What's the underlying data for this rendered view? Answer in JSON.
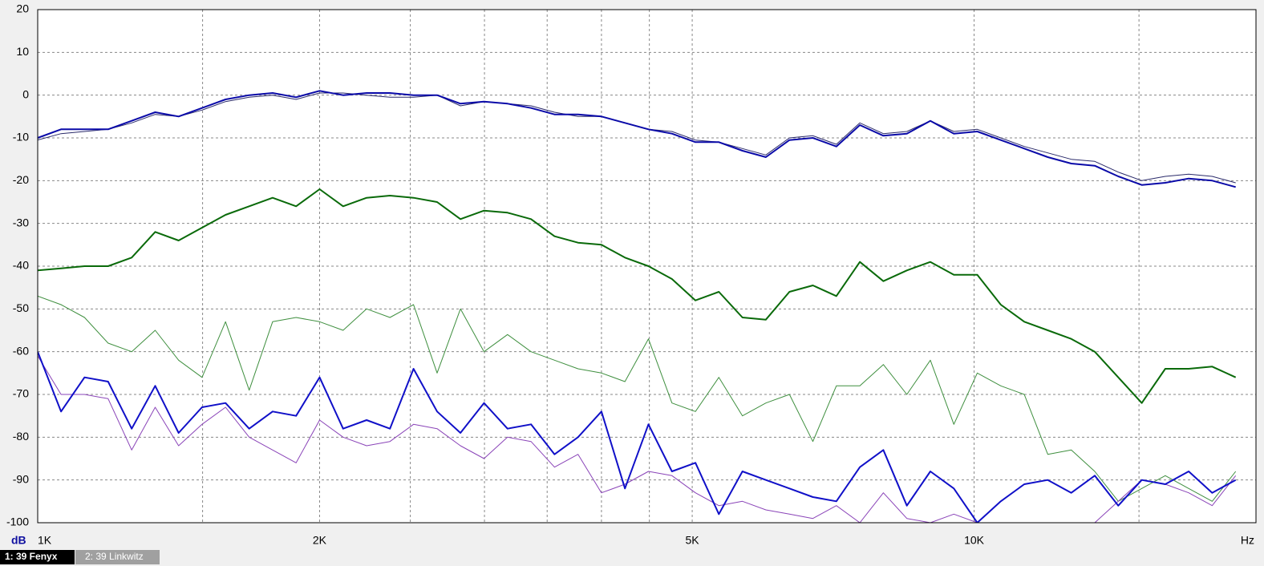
{
  "chart_data": {
    "type": "line",
    "x_scale": "log",
    "grid": true,
    "x_label": "Hz",
    "y_label": "dB",
    "tabs": [
      "1: 39 Fenyx",
      "2: 39 Linkwitz"
    ],
    "xlim": [
      1000,
      20000
    ],
    "ylim": [
      -100,
      20
    ],
    "yticks": [
      -100,
      -90,
      -80,
      -70,
      -60,
      -50,
      -40,
      -30,
      -20,
      -10,
      0,
      10,
      20
    ],
    "xticks": [
      {
        "value": 1000,
        "label": "1K"
      },
      {
        "value": 2000,
        "label": "2K"
      },
      {
        "value": 5000,
        "label": "5K"
      },
      {
        "value": 10000,
        "label": "10K"
      }
    ],
    "xgrid": [
      1500,
      2500,
      3000,
      3500,
      4000,
      4500,
      15000
    ],
    "x": [
      1000,
      1059,
      1122,
      1189,
      1260,
      1335,
      1414,
      1498,
      1587,
      1682,
      1782,
      1888,
      2000,
      2119,
      2245,
      2378,
      2520,
      2670,
      2828,
      2997,
      3175,
      3364,
      3564,
      3776,
      4000,
      4238,
      4490,
      4757,
      5040,
      5339,
      5657,
      5993,
      6350,
      6727,
      7127,
      7551,
      8000,
      8476,
      8980,
      9514,
      10079,
      10679,
      11314,
      11986,
      12699,
      13454,
      14254,
      15102,
      16000,
      16951,
      17959,
      19027
    ],
    "series": [
      {
        "color": "#2a2a6a",
        "width": 1,
        "values": [
          -10.5,
          -9,
          -8.5,
          -8,
          -6.5,
          -4.5,
          -5,
          -3.5,
          -1.5,
          -0.5,
          0,
          -1,
          0.5,
          0.5,
          0,
          -0.5,
          -0.5,
          0,
          -2.5,
          -1.5,
          -2,
          -2.5,
          -4,
          -5,
          -5,
          -6.5,
          -8,
          -8.5,
          -10.5,
          -11,
          -12.5,
          -14,
          -10,
          -9.5,
          -11.5,
          -6.5,
          -9,
          -8.5,
          -6,
          -8.5,
          -8,
          -10,
          -12,
          -13.5,
          -15,
          -15.5,
          -18,
          -20,
          -19,
          -18.5,
          -19,
          -20.5
        ]
      },
      {
        "color": "#0a0aa8",
        "width": 2,
        "values": [
          -10,
          -8,
          -8,
          -8,
          -6,
          -4,
          -5,
          -3,
          -1,
          0,
          0.5,
          -0.5,
          1,
          0,
          0.5,
          0.5,
          0,
          0,
          -2,
          -1.5,
          -2,
          -3,
          -4.5,
          -4.5,
          -5,
          -6.5,
          -8,
          -9,
          -11,
          -11,
          -13,
          -14.5,
          -10.5,
          -10,
          -12,
          -7,
          -9.5,
          -9,
          -6,
          -9,
          -8.5,
          -10.5,
          -12.5,
          -14.5,
          -16,
          -16.5,
          -19,
          -21,
          -20.5,
          -19.5,
          -20,
          -21.5
        ]
      },
      {
        "color": "#0a6a0a",
        "width": 2,
        "values": [
          -41,
          -40.5,
          -40,
          -40,
          -38,
          -32,
          -34,
          -31,
          -28,
          -26,
          -24,
          -26,
          -22,
          -26,
          -24,
          -23.5,
          -24,
          -25,
          -29,
          -27,
          -27.5,
          -29,
          -33,
          -34.5,
          -35,
          -38,
          -40,
          -43,
          -48,
          -46,
          -52,
          -52.5,
          -46,
          -44.5,
          -47,
          -39,
          -43.5,
          -41,
          -39,
          -42,
          -42,
          -49,
          -53,
          -55,
          -57,
          -60,
          -66,
          -72,
          -64,
          -64,
          -63.5,
          -66
        ]
      },
      {
        "color": "#3f8f3f",
        "width": 1,
        "values": [
          -47,
          -49,
          -52,
          -58,
          -60,
          -55,
          -62,
          -66,
          -53,
          -69,
          -53,
          -52,
          -53,
          -55,
          -50,
          -52,
          -49,
          -65,
          -50,
          -60,
          -56,
          -60,
          -62,
          -64,
          -65,
          -67,
          -57,
          -72,
          -74,
          -66,
          -75,
          -72,
          -70,
          -81,
          -68,
          -68,
          -63,
          -70,
          -62,
          -77,
          -65,
          -68,
          -70,
          -84,
          -83,
          -88,
          -95,
          -92,
          -89,
          -92,
          -95,
          -88
        ]
      },
      {
        "color": "#8a44b8",
        "width": 1,
        "values": [
          -61,
          -70,
          -70,
          -71,
          -83,
          -73,
          -82,
          -77,
          -73,
          -80,
          -83,
          -86,
          -76,
          -80,
          -82,
          -81,
          -77,
          -78,
          -82,
          -85,
          -80,
          -81,
          -87,
          -84,
          -93,
          -91,
          -88,
          -89,
          -93,
          -96,
          -95,
          -97,
          -98,
          -99,
          -96,
          -100,
          -93,
          -99,
          -100,
          -98,
          -100,
          -100,
          -100,
          -100,
          -100,
          -100,
          -95,
          -90,
          -91,
          -93,
          -96,
          -89
        ]
      },
      {
        "color": "#1010c8",
        "width": 2,
        "values": [
          -60,
          -74,
          -66,
          -67,
          -78,
          -68,
          -79,
          -73,
          -72,
          -78,
          -74,
          -75,
          -66,
          -78,
          -76,
          -78,
          -64,
          -74,
          -79,
          -72,
          -78,
          -77,
          -84,
          -80,
          -74,
          -92,
          -77,
          -88,
          -86,
          -98,
          -88,
          -90,
          -92,
          -94,
          -95,
          -87,
          -83,
          -96,
          -88,
          -92,
          -100,
          -95,
          -91,
          -90,
          -93,
          -89,
          -96,
          -90,
          -91,
          -88,
          -93,
          -90
        ]
      }
    ]
  }
}
